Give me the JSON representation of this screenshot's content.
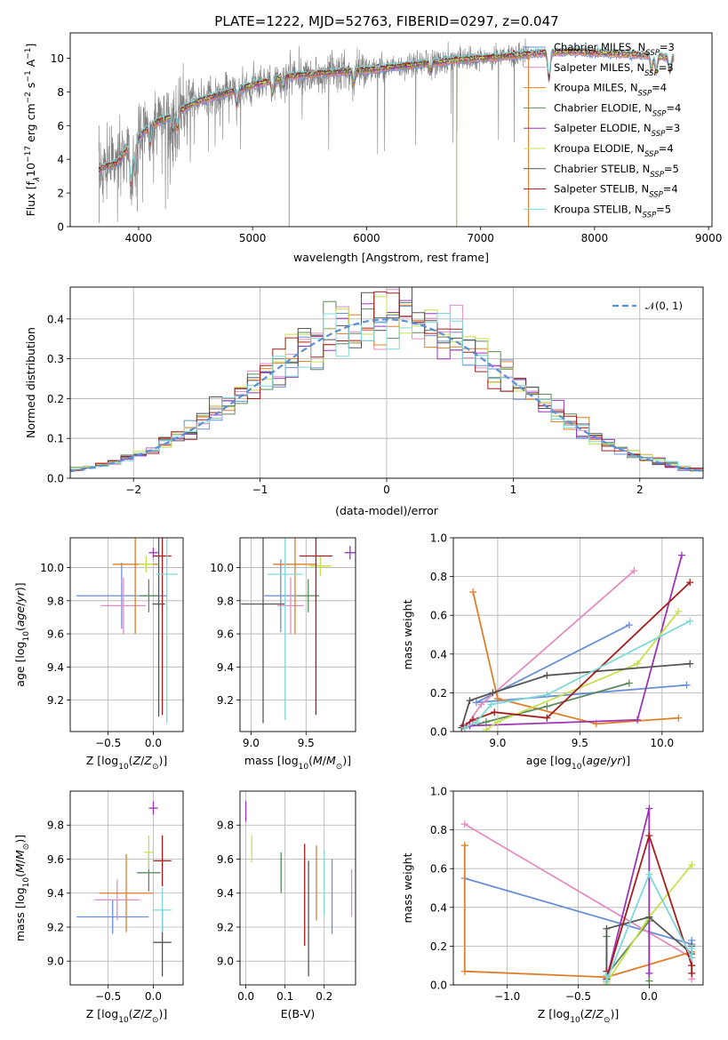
{
  "title": "PLATE=1222, MJD=52763, FIBERID=0297, z=0.047",
  "colors": {
    "Chabrier MILES": "#6a8fd8",
    "Salpeter MILES": "#e58cc0",
    "Kroupa MILES": "#e07f2a",
    "Chabrier ELODIE": "#5c8a5e",
    "Salpeter ELODIE": "#9a35b8",
    "Kroupa ELODIE": "#c6e04a",
    "Chabrier STELIB": "#555555",
    "Salpeter STELIB": "#a61c1c",
    "Kroupa STELIB": "#7fd8d8",
    "data": "#808080",
    "normal": "#5a8fd8"
  },
  "chart_data": [
    {
      "id": "spectrum",
      "type": "line",
      "xlabel": "wavelength [Angstrom, rest frame]",
      "ylabel_parts": [
        "Flux [f",
        "λ",
        "10",
        "−17",
        " erg cm",
        "−2",
        " s",
        "−1",
        " A",
        "−1",
        "]"
      ],
      "xlim": [
        3400,
        9030
      ],
      "ylim": [
        0,
        11.5
      ],
      "xticks": [
        4000,
        5000,
        6000,
        7000,
        8000,
        9000
      ],
      "yticks": [
        0,
        2,
        4,
        6,
        8,
        10
      ],
      "legend_position": "right",
      "legend": [
        {
          "base": "Chabrier MILES, N",
          "sub": "SSP",
          "tail": "=3"
        },
        {
          "base": "Salpeter MILES, N",
          "sub": "SSP",
          "tail": "=3"
        },
        {
          "base": "Kroupa MILES, N",
          "sub": "SSP",
          "tail": "=4"
        },
        {
          "base": "Chabrier ELODIE, N",
          "sub": "SSP",
          "tail": "=4"
        },
        {
          "base": "Salpeter ELODIE, N",
          "sub": "SSP",
          "tail": "=3"
        },
        {
          "base": "Kroupa ELODIE, N",
          "sub": "SSP",
          "tail": "=4"
        },
        {
          "base": "Chabrier STELIB, N",
          "sub": "SSP",
          "tail": "=5"
        },
        {
          "base": "Salpeter STELIB, N",
          "sub": "SSP",
          "tail": "=4"
        },
        {
          "base": "Kroupa STELIB, N",
          "sub": "SSP",
          "tail": "=5"
        }
      ],
      "continuum": {
        "x": [
          3650,
          3700,
          3800,
          3900,
          4000,
          4100,
          4200,
          4300,
          4500,
          4700,
          5000,
          5300,
          5600,
          6000,
          6400,
          6800,
          7200,
          7500,
          7800,
          8100,
          8400,
          8700
        ],
        "y": [
          3.3,
          3.6,
          3.7,
          4.6,
          5.3,
          6.0,
          6.3,
          6.6,
          7.4,
          7.8,
          8.4,
          8.9,
          9.1,
          9.3,
          9.6,
          9.9,
          10.1,
          10.3,
          10.4,
          10.3,
          10.2,
          10.0
        ]
      },
      "model_xrange": [
        3650,
        8700
      ],
      "data_xrange": [
        3650,
        7420
      ]
    },
    {
      "id": "residuals",
      "type": "histogram",
      "xlabel": "(data-model)/error",
      "ylabel": "Normed distribution",
      "xlim": [
        -2.5,
        2.5
      ],
      "ylim": [
        0,
        0.48
      ],
      "xticks": [
        -2,
        -1,
        0,
        1,
        2
      ],
      "yticks": [
        0.0,
        0.1,
        0.2,
        0.3,
        0.4
      ],
      "legend": "𝒩(0, 1)",
      "legend_position": "top-right",
      "bin_width": 0.1
    },
    {
      "id": "age-vs-Z",
      "type": "scatter",
      "xlabel": "Z [log10(Z/Z⊙)]",
      "ylabel": "age  [log10(age/yr)]",
      "xlim": [
        -0.92,
        0.33
      ],
      "ylim": [
        9.01,
        10.18
      ],
      "xticks": [
        -0.5,
        0.0
      ],
      "yticks": [
        9.2,
        9.4,
        9.6,
        9.8,
        10.0
      ],
      "points": [
        {
          "model": "Chabrier MILES",
          "x": -0.35,
          "xerr": 0.5,
          "y": 9.83,
          "yerr": 0.2
        },
        {
          "model": "Salpeter MILES",
          "x": -0.33,
          "xerr": 0.25,
          "y": 9.77,
          "yerr": 0.17
        },
        {
          "model": "Kroupa MILES",
          "x": -0.2,
          "xerr": 0.25,
          "y": 10.02,
          "yerr": 0.42
        },
        {
          "model": "Chabrier ELODIE",
          "x": -0.05,
          "xerr": 0.1,
          "y": 9.83,
          "yerr": 0.1
        },
        {
          "model": "Salpeter ELODIE",
          "x": 0.0,
          "xerr": 0.05,
          "y": 10.09,
          "yerr": 0.03
        },
        {
          "model": "Kroupa ELODIE",
          "x": -0.08,
          "xerr": 0.08,
          "y": 10.02,
          "yerr": 0.05
        },
        {
          "model": "Chabrier STELIB",
          "x": 0.06,
          "xerr": 0.07,
          "y": 9.78,
          "yerr": 0.68
        },
        {
          "model": "Salpeter STELIB",
          "x": 0.1,
          "xerr": 0.1,
          "y": 10.07,
          "yerr": 0.96
        },
        {
          "model": "Kroupa STELIB",
          "x": 0.15,
          "xerr": 0.12,
          "y": 9.96,
          "yerr": 0.9
        }
      ]
    },
    {
      "id": "age-vs-mass",
      "type": "scatter",
      "xlabel": "mass [log10(M/M⊙)]",
      "ylabel": "",
      "xlim": [
        8.9,
        9.95
      ],
      "ylim": [
        9.01,
        10.18
      ],
      "xticks": [
        9.0,
        9.5
      ],
      "yticks": [
        9.2,
        9.4,
        9.6,
        9.8,
        10.0
      ],
      "points": [
        {
          "model": "Chabrier MILES",
          "x": 9.27,
          "xerr": 0.15,
          "y": 9.83,
          "yerr": 0.22
        },
        {
          "model": "Salpeter MILES",
          "x": 9.36,
          "xerr": 0.12,
          "y": 9.77,
          "yerr": 0.17
        },
        {
          "model": "Kroupa MILES",
          "x": 9.4,
          "xerr": 0.2,
          "y": 10.02,
          "yerr": 0.42
        },
        {
          "model": "Chabrier ELODIE",
          "x": 9.52,
          "xerr": 0.1,
          "y": 9.83,
          "yerr": 0.1
        },
        {
          "model": "Salpeter ELODIE",
          "x": 9.9,
          "xerr": 0.05,
          "y": 10.09,
          "yerr": 0.04
        },
        {
          "model": "Kroupa ELODIE",
          "x": 9.63,
          "xerr": 0.1,
          "y": 10.01,
          "yerr": 0.06
        },
        {
          "model": "Chabrier STELIB",
          "x": 9.11,
          "xerr": 0.2,
          "y": 9.78,
          "yerr": 0.72
        },
        {
          "model": "Salpeter STELIB",
          "x": 9.59,
          "xerr": 0.15,
          "y": 10.07,
          "yerr": 0.96
        },
        {
          "model": "Kroupa STELIB",
          "x": 9.31,
          "xerr": 0.16,
          "y": 9.96,
          "yerr": 0.88
        }
      ]
    },
    {
      "id": "weight-vs-age",
      "type": "line",
      "xlabel": "age  [log10(age/yr)]",
      "ylabel": "mass weight",
      "xlim": [
        8.73,
        10.25
      ],
      "ylim": [
        0.0,
        1.0
      ],
      "xticks": [
        9.0,
        9.5,
        10.0
      ],
      "yticks": [
        0.0,
        0.2,
        0.4,
        0.6,
        0.8,
        1.0
      ],
      "series": [
        {
          "model": "Chabrier MILES",
          "x": [
            9.8,
            8.87,
            10.15
          ],
          "y": [
            0.55,
            0.15,
            0.24
          ]
        },
        {
          "model": "Salpeter MILES",
          "x": [
            9.83,
            8.9,
            8.81
          ],
          "y": [
            0.83,
            0.14,
            0.03
          ]
        },
        {
          "model": "Kroupa MILES",
          "x": [
            10.1,
            9.6,
            9.0,
            8.85
          ],
          "y": [
            0.07,
            0.04,
            0.17,
            0.72
          ]
        },
        {
          "model": "Chabrier ELODIE",
          "x": [
            9.8,
            9.3,
            8.93,
            8.8
          ],
          "y": [
            0.25,
            0.13,
            0.05,
            0.02
          ]
        },
        {
          "model": "Salpeter ELODIE",
          "x": [
            10.12,
            9.85,
            8.83
          ],
          "y": [
            0.91,
            0.06,
            0.03
          ]
        },
        {
          "model": "Kroupa ELODIE",
          "x": [
            10.1,
            9.85,
            9.0,
            8.93
          ],
          "y": [
            0.62,
            0.35,
            0.05,
            0.01
          ]
        },
        {
          "model": "Chabrier STELIB",
          "x": [
            10.17,
            9.3,
            8.97,
            8.83,
            8.78
          ],
          "y": [
            0.35,
            0.29,
            0.2,
            0.16,
            0.02
          ]
        },
        {
          "model": "Salpeter STELIB",
          "x": [
            10.17,
            9.3,
            8.98,
            8.85,
            8.79
          ],
          "y": [
            0.77,
            0.07,
            0.1,
            0.06,
            0.03
          ]
        },
        {
          "model": "Kroupa STELIB",
          "x": [
            10.17,
            9.3,
            8.96,
            8.87,
            8.8
          ],
          "y": [
            0.57,
            0.19,
            0.14,
            0.05,
            0.02
          ]
        }
      ]
    },
    {
      "id": "mass-vs-Z",
      "type": "scatter",
      "xlabel": "Z [log10(Z/Z⊙)]",
      "ylabel": "mass [log10(M/M⊙)]",
      "xlim": [
        -0.92,
        0.33
      ],
      "ylim": [
        8.86,
        10.0
      ],
      "xticks": [
        -0.5,
        0.0
      ],
      "yticks": [
        9.0,
        9.2,
        9.4,
        9.6,
        9.8
      ],
      "points": [
        {
          "model": "Chabrier MILES",
          "x": -0.45,
          "xerr": 0.4,
          "y": 9.26,
          "yerr": 0.1
        },
        {
          "model": "Salpeter MILES",
          "x": -0.4,
          "xerr": 0.25,
          "y": 9.36,
          "yerr": 0.12
        },
        {
          "model": "Kroupa MILES",
          "x": -0.3,
          "xerr": 0.3,
          "y": 9.4,
          "yerr": 0.23
        },
        {
          "model": "Chabrier ELODIE",
          "x": -0.05,
          "xerr": 0.13,
          "y": 9.52,
          "yerr": 0.11
        },
        {
          "model": "Salpeter ELODIE",
          "x": 0.0,
          "xerr": 0.05,
          "y": 9.9,
          "yerr": 0.04
        },
        {
          "model": "Kroupa ELODIE",
          "x": -0.05,
          "xerr": 0.05,
          "y": 9.64,
          "yerr": 0.1
        },
        {
          "model": "Chabrier STELIB",
          "x": 0.1,
          "xerr": 0.1,
          "y": 9.11,
          "yerr": 0.2
        },
        {
          "model": "Salpeter STELIB",
          "x": 0.1,
          "xerr": 0.1,
          "y": 9.59,
          "yerr": 0.15
        },
        {
          "model": "Kroupa STELIB",
          "x": 0.1,
          "xerr": 0.1,
          "y": 9.3,
          "yerr": 0.13
        }
      ]
    },
    {
      "id": "mass-vs-EBV",
      "type": "scatter",
      "xlabel": "E(B-V)",
      "ylabel": "",
      "xlim": [
        -0.015,
        0.28
      ],
      "ylim": [
        8.86,
        10.0
      ],
      "xticks": [
        0.0,
        0.1,
        0.2
      ],
      "yticks": [
        9.0,
        9.2,
        9.4,
        9.6,
        9.8
      ],
      "points": [
        {
          "model": "Chabrier MILES",
          "x": 0.22,
          "y": 9.38,
          "yerr": 0.22
        },
        {
          "model": "Salpeter MILES",
          "x": 0.27,
          "y": 9.4,
          "yerr": 0.14
        },
        {
          "model": "Kroupa MILES",
          "x": 0.18,
          "y": 9.46,
          "yerr": 0.22
        },
        {
          "model": "Chabrier ELODIE",
          "x": 0.09,
          "y": 9.52,
          "yerr": 0.12
        },
        {
          "model": "Salpeter ELODIE",
          "x": 0.0,
          "y": 9.88,
          "yerr": 0.06
        },
        {
          "model": "Kroupa ELODIE",
          "x": 0.015,
          "y": 9.66,
          "yerr": 0.08
        },
        {
          "model": "Chabrier STELIB",
          "x": 0.16,
          "y": 9.25,
          "yerr": 0.34
        },
        {
          "model": "Salpeter STELIB",
          "x": 0.15,
          "y": 9.39,
          "yerr": 0.3
        },
        {
          "model": "Kroupa STELIB",
          "x": 0.2,
          "y": 9.46,
          "yerr": 0.19
        }
      ]
    },
    {
      "id": "weight-vs-Z",
      "type": "line",
      "xlabel": "Z [log10(Z/Z⊙)]",
      "ylabel": "mass weight",
      "xlim": [
        -1.38,
        0.38
      ],
      "ylim": [
        0.0,
        1.0
      ],
      "xticks": [
        -1.0,
        -0.5,
        0.0
      ],
      "yticks": [
        0.0,
        0.2,
        0.4,
        0.6,
        0.8,
        1.0
      ],
      "series": [
        {
          "model": "Chabrier MILES",
          "x": [
            -1.3,
            0.3,
            0.3
          ],
          "y": [
            0.55,
            0.21,
            0.23
          ]
        },
        {
          "model": "Salpeter MILES",
          "x": [
            -1.3,
            0.3,
            0.3
          ],
          "y": [
            0.83,
            0.14,
            0.03
          ]
        },
        {
          "model": "Kroupa MILES",
          "x": [
            -1.3,
            -1.3,
            -0.3,
            0.3
          ],
          "y": [
            0.72,
            0.07,
            0.04,
            0.17
          ]
        },
        {
          "model": "Chabrier ELODIE",
          "x": [
            -0.3,
            -0.3,
            0.0,
            0.0
          ],
          "y": [
            0.25,
            0.05,
            0.33,
            0.02
          ]
        },
        {
          "model": "Salpeter ELODIE",
          "x": [
            -0.3,
            0.0,
            0.0
          ],
          "y": [
            0.03,
            0.91,
            0.06
          ]
        },
        {
          "model": "Kroupa ELODIE",
          "x": [
            -0.3,
            0.0,
            0.3
          ],
          "y": [
            0.01,
            0.35,
            0.62
          ]
        },
        {
          "model": "Chabrier STELIB",
          "x": [
            -0.3,
            -0.3,
            0.0,
            0.3,
            0.3
          ],
          "y": [
            0.02,
            0.29,
            0.35,
            0.16,
            0.2
          ]
        },
        {
          "model": "Salpeter STELIB",
          "x": [
            -0.3,
            -0.3,
            0.0,
            0.3,
            0.3
          ],
          "y": [
            0.07,
            0.03,
            0.77,
            0.1,
            0.06
          ]
        },
        {
          "model": "Kroupa STELIB",
          "x": [
            -0.3,
            -0.3,
            0.0,
            0.3,
            0.3
          ],
          "y": [
            0.05,
            0.02,
            0.57,
            0.14,
            0.19
          ]
        }
      ]
    }
  ]
}
